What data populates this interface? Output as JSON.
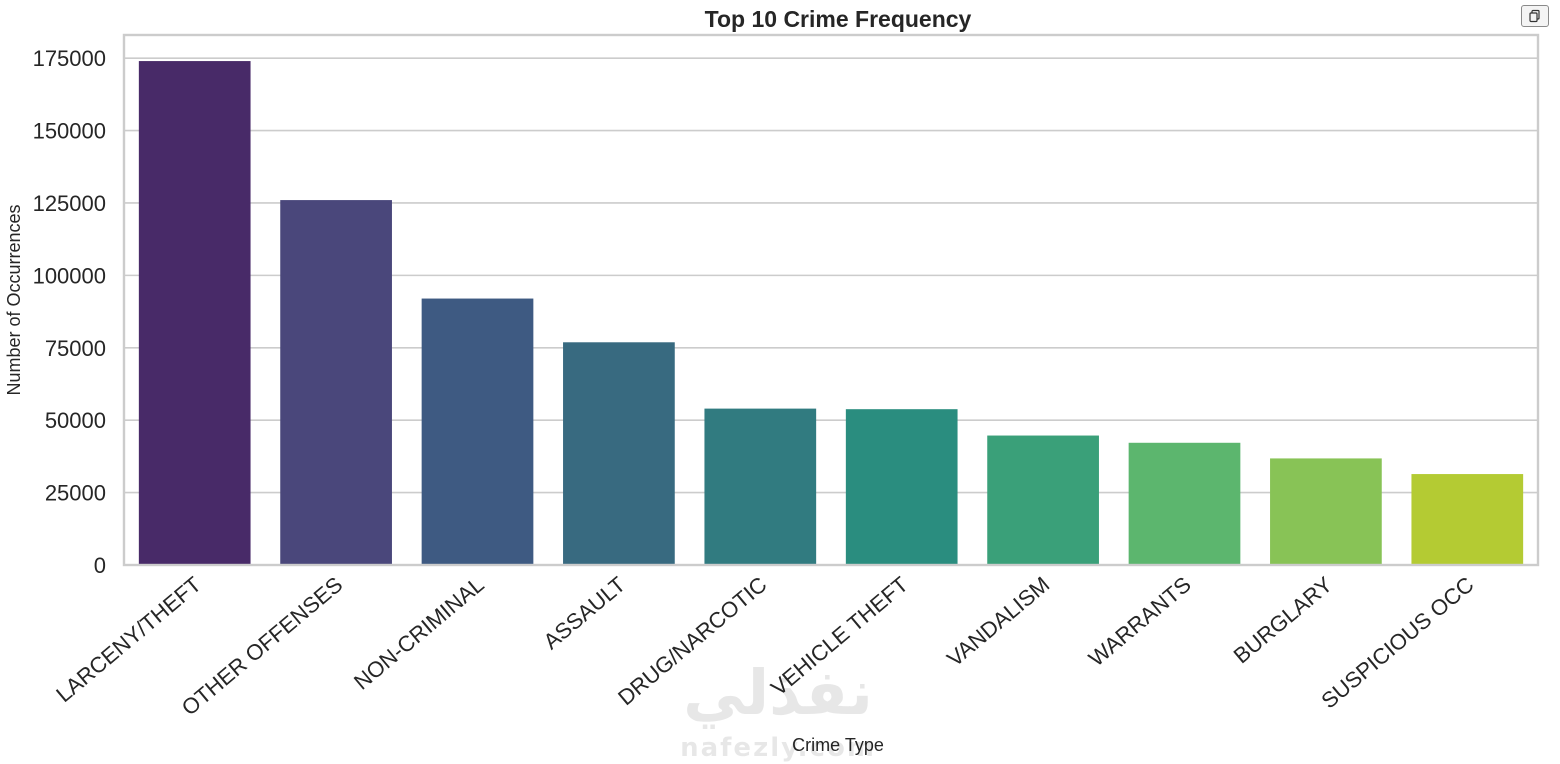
{
  "watermark": {
    "text": "نفذلي",
    "subtext": "nafezly.com"
  },
  "toolbar": {
    "copy_icon": "copy-icon"
  },
  "chart_data": {
    "type": "bar",
    "title": "Top 10 Crime Frequency",
    "xlabel": "Crime Type",
    "ylabel": "Number of Occurrences",
    "categories": [
      "LARCENY/THEFT",
      "OTHER OFFENSES",
      "NON-CRIMINAL",
      "ASSAULT",
      "DRUG/NARCOTIC",
      "VEHICLE THEFT",
      "VANDALISM",
      "WARRANTS",
      "BURGLARY",
      "SUSPICIOUS OCC"
    ],
    "values": [
      174000,
      126000,
      92000,
      76900,
      54000,
      53800,
      44700,
      42200,
      36800,
      31400
    ],
    "colors": [
      "#482a68",
      "#4a477b",
      "#3e5a82",
      "#386a80",
      "#317b80",
      "#2a8d7f",
      "#3aa079",
      "#5cb66e",
      "#88c356",
      "#b4cb33"
    ],
    "ylim": [
      0,
      183000
    ],
    "yticks": [
      0,
      25000,
      50000,
      75000,
      100000,
      125000,
      150000,
      175000
    ],
    "ytick_labels": [
      "0",
      "25000",
      "50000",
      "75000",
      "100000",
      "125000",
      "150000",
      "175000"
    ],
    "grid": true
  }
}
